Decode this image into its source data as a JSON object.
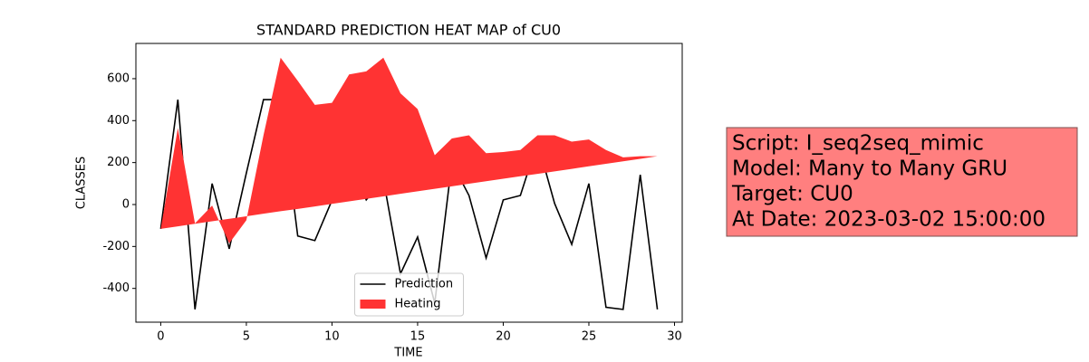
{
  "chart_data": {
    "type": "line",
    "title": "STANDARD PREDICTION HEAT MAP of CU0",
    "xlabel": "TIME",
    "ylabel": "CLASSES",
    "x": [
      0,
      1,
      2,
      3,
      4,
      5,
      6,
      7,
      8,
      9,
      10,
      11,
      12,
      13,
      14,
      15,
      16,
      17,
      18,
      19,
      20,
      21,
      22,
      23,
      24,
      25,
      26,
      27,
      28,
      29
    ],
    "xlim": [
      -1.45,
      30.45
    ],
    "xticks": [
      0,
      5,
      10,
      15,
      20,
      25,
      30
    ],
    "ylim": [
      -561,
      768
    ],
    "yticks": [
      -400,
      -200,
      0,
      200,
      400,
      600
    ],
    "legend": "lower center",
    "series": [
      {
        "name": "Prediction",
        "color": "#000000",
        "kind": "line",
        "values": [
          -116,
          500,
          -500,
          100,
          -211,
          150,
          500,
          500,
          -150,
          -172,
          20,
          215,
          22,
          120,
          -330,
          -155,
          -470,
          200,
          43,
          -255,
          22,
          43,
          298,
          5,
          -190,
          100,
          -490,
          -500,
          142,
          -500
        ]
      },
      {
        "name": "Heating",
        "color": "#ff3333",
        "kind": "fill",
        "values": [
          -116,
          365,
          -90,
          -5,
          -185,
          -75,
          330,
          700,
          590,
          475,
          485,
          620,
          635,
          700,
          530,
          455,
          235,
          315,
          330,
          245,
          250,
          260,
          330,
          330,
          300,
          310,
          260,
          225,
          230,
          230
        ],
        "baseline": [
          -116,
          -104,
          -92,
          -80,
          -68,
          -56,
          -44,
          -32,
          -21,
          -9,
          3,
          15,
          27,
          39,
          51,
          63,
          75,
          87,
          99,
          111,
          123,
          135,
          146,
          158,
          170,
          182,
          194,
          206,
          218,
          230
        ]
      }
    ],
    "annotation": [
      "Script: I_seq2seq_mimic",
      "Model: Many to Many GRU",
      "Target: CU0",
      "At Date: 2023-03-02 15:00:00"
    ]
  }
}
